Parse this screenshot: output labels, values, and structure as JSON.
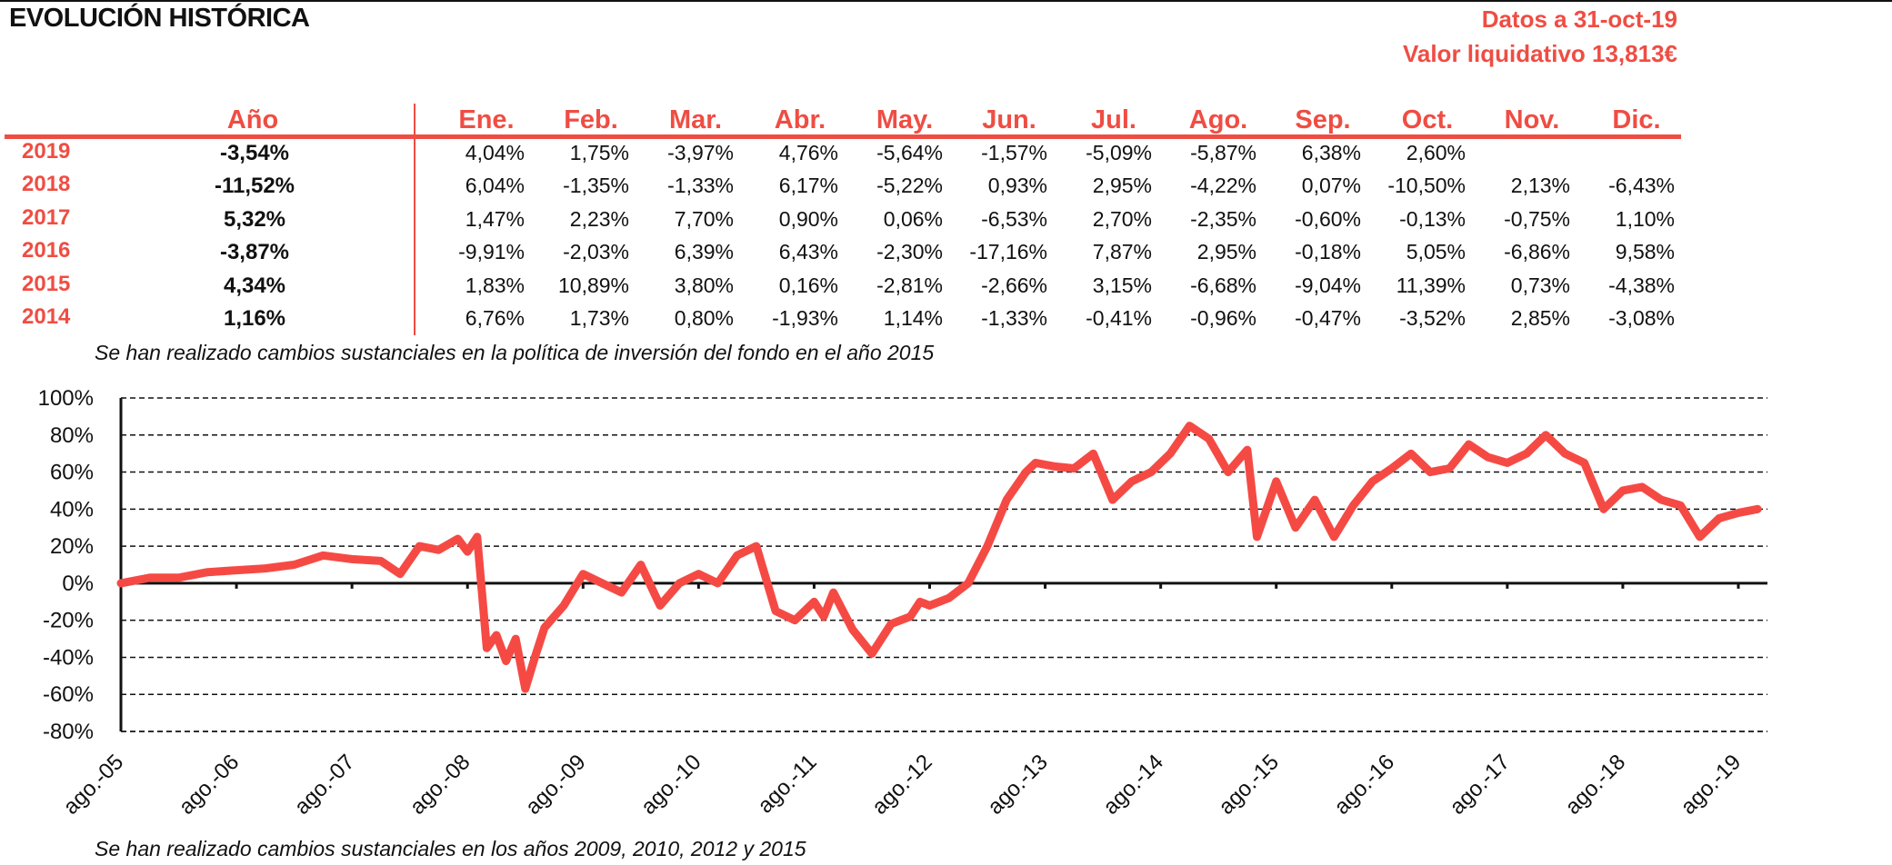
{
  "header": {
    "title": "EVOLUCIÓN HISTÓRICA",
    "date_text": "Datos a 31-oct-19",
    "nav_text": "Valor liquidativo 13,813€"
  },
  "table": {
    "year_header": "Año",
    "months": [
      "Ene.",
      "Feb.",
      "Mar.",
      "Abr.",
      "May.",
      "Jun.",
      "Jul.",
      "Ago.",
      "Sep.",
      "Oct.",
      "Nov.",
      "Dic."
    ],
    "rows": [
      {
        "year": "2019",
        "annual": "-3,54%",
        "values": [
          "4,04%",
          "1,75%",
          "-3,97%",
          "4,76%",
          "-5,64%",
          "-1,57%",
          "-5,09%",
          "-5,87%",
          "6,38%",
          "2,60%",
          "",
          ""
        ]
      },
      {
        "year": "2018",
        "annual": "-11,52%",
        "values": [
          "6,04%",
          "-1,35%",
          "-1,33%",
          "6,17%",
          "-5,22%",
          "0,93%",
          "2,95%",
          "-4,22%",
          "0,07%",
          "-10,50%",
          "2,13%",
          "-6,43%"
        ]
      },
      {
        "year": "2017",
        "annual": "5,32%",
        "values": [
          "1,47%",
          "2,23%",
          "7,70%",
          "0,90%",
          "0,06%",
          "-6,53%",
          "2,70%",
          "-2,35%",
          "-0,60%",
          "-0,13%",
          "-0,75%",
          "1,10%"
        ]
      },
      {
        "year": "2016",
        "annual": "-3,87%",
        "values": [
          "-9,91%",
          "-2,03%",
          "6,39%",
          "6,43%",
          "-2,30%",
          "-17,16%",
          "7,87%",
          "2,95%",
          "-0,18%",
          "5,05%",
          "-6,86%",
          "9,58%"
        ]
      },
      {
        "year": "2015",
        "annual": "4,34%",
        "values": [
          "1,83%",
          "10,89%",
          "3,80%",
          "0,16%",
          "-2,81%",
          "-2,66%",
          "3,15%",
          "-6,68%",
          "-9,04%",
          "11,39%",
          "0,73%",
          "-4,38%"
        ]
      },
      {
        "year": "2014",
        "annual": "1,16%",
        "values": [
          "6,76%",
          "1,73%",
          "0,80%",
          "-1,93%",
          "1,14%",
          "-1,33%",
          "-0,41%",
          "-0,96%",
          "-0,47%",
          "-3,52%",
          "2,85%",
          "-3,08%"
        ]
      }
    ]
  },
  "notes": {
    "table_note": "Se han realizado cambios sustanciales en la política de inversión del fondo en el año 2015",
    "chart_note": "Se han realizado cambios sustanciales en los años 2009, 2010, 2012 y 2015"
  },
  "chart_data": {
    "type": "line",
    "title": "",
    "xlabel": "",
    "ylabel": "",
    "ylim": [
      -80,
      100
    ],
    "y_ticks": [
      "100%",
      "80%",
      "60%",
      "40%",
      "20%",
      "0%",
      "-20%",
      "-40%",
      "-60%",
      "-80%"
    ],
    "x_ticks": [
      "ago.-05",
      "ago.-06",
      "ago.-07",
      "ago.-08",
      "ago.-09",
      "ago.-10",
      "ago.-11",
      "ago.-12",
      "ago.-13",
      "ago.-14",
      "ago.-15",
      "ago.-16",
      "ago.-17",
      "ago.-18",
      "ago.-19"
    ],
    "grid": "horizontal dashed",
    "line_color": "#f54a44",
    "series": [
      {
        "x": [
          "2005-08",
          "2005-11",
          "2006-02",
          "2006-05",
          "2006-08",
          "2006-11",
          "2007-02",
          "2007-05",
          "2007-08",
          "2007-11",
          "2008-01",
          "2008-03",
          "2008-05",
          "2008-07",
          "2008-08",
          "2008-09",
          "2008-10",
          "2008-11",
          "2008-12",
          "2009-01",
          "2009-02",
          "2009-03",
          "2009-04",
          "2009-06",
          "2009-08",
          "2009-10",
          "2009-12",
          "2010-02",
          "2010-04",
          "2010-06",
          "2010-08",
          "2010-10",
          "2010-12",
          "2011-02",
          "2011-04",
          "2011-06",
          "2011-08",
          "2011-09",
          "2011-10",
          "2011-12",
          "2012-02",
          "2012-04",
          "2012-06",
          "2012-07",
          "2012-08",
          "2012-10",
          "2012-12",
          "2013-02",
          "2013-04",
          "2013-06",
          "2013-07",
          "2013-09",
          "2013-11",
          "2014-01",
          "2014-03",
          "2014-05",
          "2014-07",
          "2014-09",
          "2014-11",
          "2015-01",
          "2015-03",
          "2015-05",
          "2015-06",
          "2015-08",
          "2015-10",
          "2015-12",
          "2016-02",
          "2016-04",
          "2016-06",
          "2016-08",
          "2016-10",
          "2016-12",
          "2017-02",
          "2017-04",
          "2017-06",
          "2017-08",
          "2017-10",
          "2017-12",
          "2018-02",
          "2018-04",
          "2018-06",
          "2018-08",
          "2018-10",
          "2018-12",
          "2019-02",
          "2019-04",
          "2019-06",
          "2019-08",
          "2019-10"
        ],
        "y": [
          0,
          3,
          3,
          6,
          7,
          8,
          10,
          15,
          13,
          12,
          5,
          20,
          18,
          24,
          17,
          25,
          -35,
          -28,
          -42,
          -30,
          -57,
          -40,
          -24,
          -12,
          5,
          0,
          -5,
          10,
          -12,
          0,
          5,
          0,
          15,
          20,
          -15,
          -20,
          -10,
          -18,
          -5,
          -25,
          -38,
          -22,
          -18,
          -10,
          -12,
          -8,
          0,
          20,
          45,
          60,
          65,
          63,
          62,
          70,
          45,
          55,
          60,
          70,
          85,
          78,
          60,
          72,
          25,
          55,
          30,
          45,
          25,
          42,
          55,
          62,
          70,
          60,
          62,
          75,
          68,
          65,
          70,
          80,
          70,
          65,
          40,
          50,
          52,
          45,
          42,
          25,
          35,
          38,
          40
        ]
      }
    ]
  }
}
